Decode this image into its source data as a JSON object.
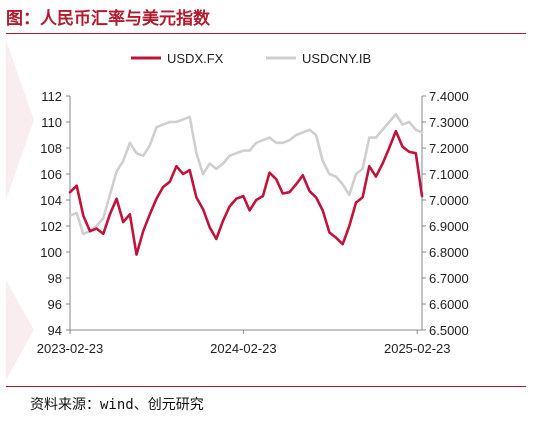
{
  "header": {
    "title": "图：人民币汇率与美元指数"
  },
  "footer": {
    "source": "资料来源：wind、创元研究"
  },
  "colors": {
    "brand": "#b01c2e",
    "usdx": "#c0143c",
    "usdcny": "#cfcfcf"
  },
  "chart_data": {
    "type": "line",
    "title": "",
    "xlabel": "",
    "ylabel_left": "",
    "ylabel_right": "",
    "x_tick_labels": [
      "2023-02-23",
      "2024-02-23",
      "2025-02-23"
    ],
    "x_range": [
      "2023-02-23",
      "2025-03-05"
    ],
    "y_left_ticks": [
      "94",
      "96",
      "98",
      "100",
      "102",
      "104",
      "106",
      "108",
      "110",
      "112"
    ],
    "y_left_range": [
      94,
      112
    ],
    "y_right_ticks": [
      "6.5000",
      "6.6000",
      "6.7000",
      "6.8000",
      "6.9000",
      "7.0000",
      "7.1000",
      "7.2000",
      "7.3000",
      "7.4000"
    ],
    "y_right_range": [
      6.5,
      7.4
    ],
    "legend_position": "top",
    "grid": false,
    "series": [
      {
        "name": "USDX.FX",
        "axis": "left",
        "color": "#c0143c",
        "x": [
          "2023-02-23",
          "2023-03-09",
          "2023-03-23",
          "2023-04-06",
          "2023-04-20",
          "2023-05-04",
          "2023-05-18",
          "2023-06-01",
          "2023-06-15",
          "2023-06-29",
          "2023-07-13",
          "2023-07-27",
          "2023-08-10",
          "2023-08-24",
          "2023-09-07",
          "2023-09-21",
          "2023-10-05",
          "2023-10-19",
          "2023-11-02",
          "2023-11-16",
          "2023-11-30",
          "2023-12-14",
          "2023-12-28",
          "2024-01-11",
          "2024-01-25",
          "2024-02-08",
          "2024-02-23",
          "2024-03-07",
          "2024-03-21",
          "2024-04-04",
          "2024-04-18",
          "2024-05-02",
          "2024-05-16",
          "2024-05-30",
          "2024-06-13",
          "2024-06-27",
          "2024-07-11",
          "2024-07-25",
          "2024-08-08",
          "2024-08-22",
          "2024-09-05",
          "2024-09-19",
          "2024-10-03",
          "2024-10-17",
          "2024-10-31",
          "2024-11-14",
          "2024-11-28",
          "2024-12-12",
          "2024-12-26",
          "2025-01-09",
          "2025-01-23",
          "2025-02-06",
          "2025-02-20",
          "2025-03-05"
        ],
        "values": [
          104.6,
          105.1,
          102.8,
          101.6,
          101.8,
          101.4,
          102.9,
          104.1,
          102.3,
          102.9,
          99.8,
          101.6,
          102.9,
          104.1,
          105.0,
          105.4,
          106.6,
          106.0,
          106.3,
          104.2,
          103.3,
          101.9,
          101.0,
          102.4,
          103.5,
          104.1,
          104.3,
          103.2,
          104.0,
          104.3,
          106.1,
          105.6,
          104.5,
          104.6,
          105.2,
          105.9,
          104.7,
          104.2,
          103.2,
          101.5,
          101.1,
          100.6,
          102.0,
          103.8,
          104.2,
          106.6,
          105.8,
          106.8,
          108.0,
          109.3,
          108.1,
          107.7,
          107.6,
          104.3
        ]
      },
      {
        "name": "USDCNY.IB",
        "axis": "right",
        "color": "#cfcfcf",
        "x": [
          "2023-02-23",
          "2023-03-09",
          "2023-03-23",
          "2023-04-06",
          "2023-04-20",
          "2023-05-04",
          "2023-05-18",
          "2023-06-01",
          "2023-06-15",
          "2023-06-29",
          "2023-07-13",
          "2023-07-27",
          "2023-08-10",
          "2023-08-24",
          "2023-09-07",
          "2023-09-21",
          "2023-10-05",
          "2023-10-19",
          "2023-11-02",
          "2023-11-16",
          "2023-11-30",
          "2023-12-14",
          "2023-12-28",
          "2024-01-11",
          "2024-01-25",
          "2024-02-08",
          "2024-02-23",
          "2024-03-07",
          "2024-03-21",
          "2024-04-04",
          "2024-04-18",
          "2024-05-02",
          "2024-05-16",
          "2024-05-30",
          "2024-06-13",
          "2024-06-27",
          "2024-07-11",
          "2024-07-25",
          "2024-08-08",
          "2024-08-22",
          "2024-09-05",
          "2024-09-19",
          "2024-10-03",
          "2024-10-17",
          "2024-10-31",
          "2024-11-14",
          "2024-11-28",
          "2024-12-12",
          "2024-12-26",
          "2025-01-09",
          "2025-01-23",
          "2025-02-06",
          "2025-02-20",
          "2025-03-05"
        ],
        "values": [
          6.94,
          6.95,
          6.87,
          6.88,
          6.9,
          6.93,
          7.02,
          7.11,
          7.15,
          7.22,
          7.18,
          7.17,
          7.21,
          7.28,
          7.29,
          7.3,
          7.3,
          7.31,
          7.32,
          7.18,
          7.1,
          7.14,
          7.12,
          7.14,
          7.17,
          7.18,
          7.19,
          7.19,
          7.22,
          7.23,
          7.24,
          7.22,
          7.22,
          7.23,
          7.25,
          7.26,
          7.27,
          7.25,
          7.15,
          7.1,
          7.09,
          7.06,
          7.02,
          7.1,
          7.12,
          7.24,
          7.24,
          7.27,
          7.3,
          7.33,
          7.29,
          7.3,
          7.27,
          7.26
        ]
      }
    ]
  }
}
